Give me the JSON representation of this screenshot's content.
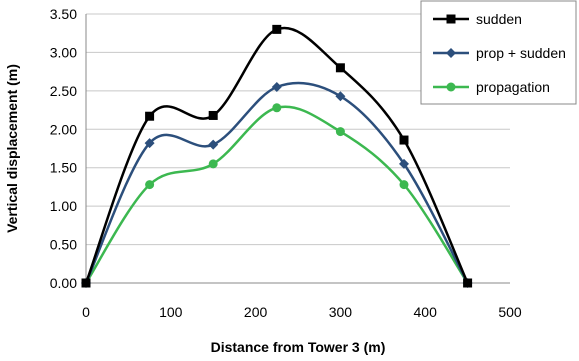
{
  "chart_data": {
    "type": "line",
    "xlabel": "Distance from Tower 3 (m)",
    "ylabel": "Vertical displacement (m)",
    "xlim": [
      0,
      500
    ],
    "ylim": [
      0,
      3.5
    ],
    "x_ticks": [
      0,
      100,
      200,
      300,
      400,
      500
    ],
    "y_ticks": [
      0,
      0.5,
      1.0,
      1.5,
      2.0,
      2.5,
      3.0,
      3.5
    ],
    "x_tick_labels": [
      "0",
      "100",
      "200",
      "300",
      "400",
      "500"
    ],
    "y_tick_labels": [
      "0.00",
      "0.50",
      "1.00",
      "1.50",
      "2.00",
      "2.50",
      "3.00",
      "3.50"
    ],
    "grid": "horizontal",
    "legend_position": "top-right",
    "series": [
      {
        "name": "sudden",
        "color": "#000000",
        "marker": "square",
        "x": [
          0,
          75,
          150,
          225,
          300,
          375,
          450
        ],
        "y": [
          0,
          2.17,
          2.18,
          3.3,
          2.8,
          1.86,
          0
        ]
      },
      {
        "name": "prop + sudden",
        "color": "#2c4f7c",
        "marker": "diamond",
        "x": [
          0,
          75,
          150,
          225,
          300,
          375,
          450
        ],
        "y": [
          0,
          1.82,
          1.8,
          2.55,
          2.43,
          1.55,
          0
        ]
      },
      {
        "name": "propagation",
        "color": "#3cb850",
        "marker": "circle",
        "x": [
          0,
          75,
          150,
          225,
          300,
          375,
          450
        ],
        "y": [
          0,
          1.28,
          1.55,
          2.28,
          1.97,
          1.28,
          0
        ]
      }
    ]
  }
}
